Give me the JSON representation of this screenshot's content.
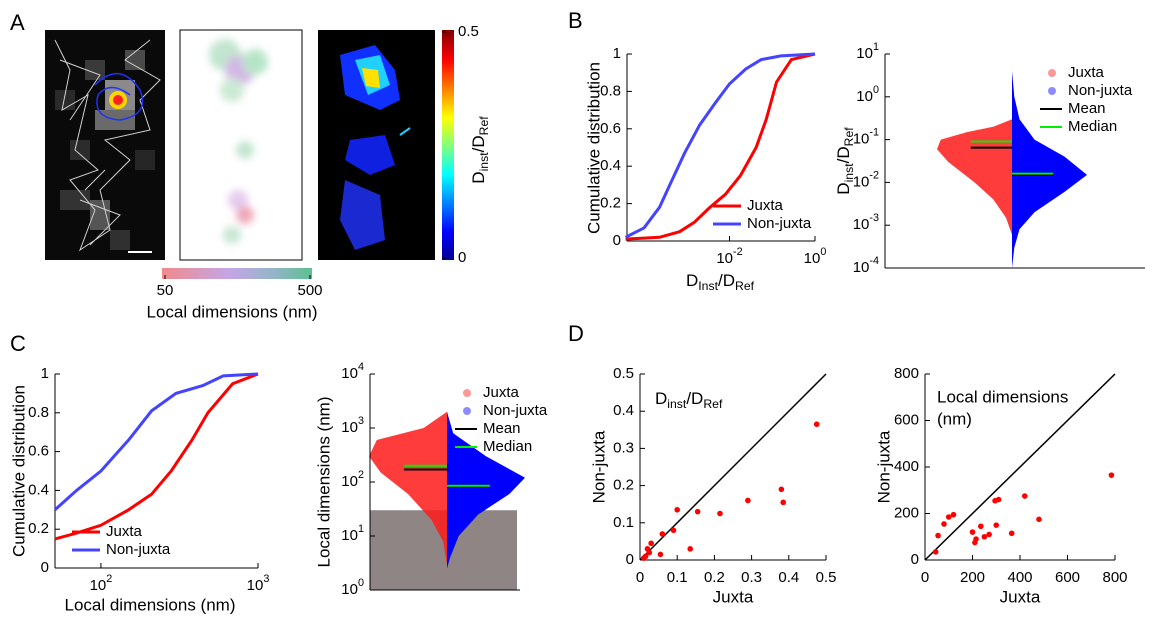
{
  "panel_labels": {
    "a": "A",
    "b": "B",
    "c": "C",
    "d": "D"
  },
  "panel_a": {
    "colorbar_jet": {
      "lim": [
        0,
        0.5
      ],
      "ticks": [
        0,
        0.5
      ],
      "label": [
        "D",
        "inst",
        "/D",
        "Ref"
      ]
    },
    "colorbar_local": {
      "lim": [
        50,
        500
      ],
      "ticks": [
        50,
        500
      ],
      "label": "Local dimensions (nm)"
    }
  },
  "chart_data": [
    {
      "type": "line",
      "xscale": "log",
      "xlim": [
        4e-05,
        1
      ],
      "xticks": [
        {
          "value": 0.01,
          "label": "10",
          "exponent": "-2"
        },
        {
          "value": 1,
          "label": "10",
          "exponent": "0"
        }
      ],
      "ylim": [
        0,
        1
      ],
      "yticks": [
        0,
        0.2,
        0.4,
        0.6,
        0.8,
        1
      ],
      "xlabel": [
        "D",
        "Inst",
        "/D",
        "Ref"
      ],
      "ylabel": "Cumulative distribution",
      "legend": "lower right",
      "series": [
        {
          "name": "Juxta",
          "color": "#ff0000",
          "x": [
            3.7e-05,
            0.00023,
            0.00068,
            0.0015,
            0.0035,
            0.008,
            0.018,
            0.042,
            0.072,
            0.126,
            0.28,
            1
          ],
          "values": [
            0.01,
            0.02,
            0.05,
            0.1,
            0.18,
            0.25,
            0.35,
            0.5,
            0.65,
            0.85,
            0.97,
            1
          ]
        },
        {
          "name": "Non-juxta",
          "color": "#4444ff",
          "x": [
            3.7e-05,
            0.0001,
            0.00023,
            0.00044,
            0.00089,
            0.002,
            0.0047,
            0.01,
            0.024,
            0.055,
            0.16,
            1
          ],
          "values": [
            0.02,
            0.07,
            0.18,
            0.32,
            0.47,
            0.62,
            0.74,
            0.84,
            0.92,
            0.97,
            0.99,
            1
          ]
        }
      ]
    },
    {
      "type": "violin",
      "yscale": "log",
      "ylim": [
        0.0001,
        10
      ],
      "yticks": [
        {
          "value": 0.0001,
          "label": "10",
          "exponent": "-4"
        },
        {
          "value": 0.001,
          "label": "10",
          "exponent": "-3"
        },
        {
          "value": 0.01,
          "label": "10",
          "exponent": "-2"
        },
        {
          "value": 0.1,
          "label": "10",
          "exponent": "-1"
        },
        {
          "value": 1,
          "label": "10",
          "exponent": "0"
        },
        {
          "value": 10,
          "label": "10",
          "exponent": "1"
        }
      ],
      "ylabel": [
        "D",
        "inst",
        "/D",
        "Ref"
      ],
      "legend": "upper right",
      "series": [
        {
          "name": "Juxta",
          "color": "#ff1a1a",
          "side": "left",
          "y": [
            0.3,
            0.2,
            0.15,
            0.1,
            0.06,
            0.03,
            0.01,
            0.004,
            0.0015,
            0.0006
          ],
          "width": [
            0,
            0.25,
            0.6,
            0.95,
            1,
            0.85,
            0.5,
            0.25,
            0.08,
            0
          ]
        },
        {
          "name": "Non-juxta",
          "color": "#0000ff",
          "side": "right",
          "y": [
            4,
            1,
            0.3,
            0.1,
            0.04,
            0.015,
            0.006,
            0.002,
            0.0008,
            0.0003,
            0.0001
          ],
          "width": [
            0,
            0.03,
            0.1,
            0.3,
            0.7,
            1,
            0.7,
            0.3,
            0.1,
            0.03,
            0
          ]
        }
      ],
      "stats": [
        {
          "name": "Mean",
          "color": "#000000",
          "values": [
            0.065,
            0.015
          ]
        },
        {
          "name": "Median",
          "color": "#00ee00",
          "values": [
            0.09,
            0.016
          ]
        }
      ]
    },
    {
      "type": "line",
      "xscale": "log",
      "xlim": [
        51,
        1000
      ],
      "xticks": [
        {
          "value": 100,
          "label": "10",
          "exponent": "2"
        },
        {
          "value": 1000,
          "label": "10",
          "exponent": "3"
        }
      ],
      "ylim": [
        0,
        1
      ],
      "yticks": [
        0,
        0.2,
        0.4,
        0.6,
        0.8,
        1
      ],
      "xlabel": "Local dimensions (nm)",
      "ylabel": "Cumulative distribution",
      "legend": "lower left",
      "series": [
        {
          "name": "Juxta",
          "color": "#ff0000",
          "x": [
            51,
            70,
            100,
            150,
            210,
            280,
            380,
            480,
            690,
            1000
          ],
          "values": [
            0.15,
            0.18,
            0.22,
            0.3,
            0.38,
            0.5,
            0.66,
            0.8,
            0.95,
            1
          ]
        },
        {
          "name": "Non-juxta",
          "color": "#4444ff",
          "x": [
            51,
            70,
            100,
            150,
            210,
            300,
            445,
            600,
            1000
          ],
          "values": [
            0.3,
            0.4,
            0.5,
            0.66,
            0.81,
            0.9,
            0.94,
            0.99,
            1
          ]
        }
      ]
    },
    {
      "type": "violin",
      "yscale": "log",
      "ylim": [
        1,
        10000
      ],
      "yticks": [
        {
          "value": 1,
          "label": "10",
          "exponent": "0"
        },
        {
          "value": 10,
          "label": "10",
          "exponent": "1"
        },
        {
          "value": 100,
          "label": "10",
          "exponent": "2"
        },
        {
          "value": 1000,
          "label": "10",
          "exponent": "3"
        },
        {
          "value": 10000,
          "label": "10",
          "exponent": "4"
        }
      ],
      "ylabel": "Local dimensions (nm)",
      "legend": "upper right",
      "shade_max": 30,
      "shade_color": "#8f8585",
      "series": [
        {
          "name": "Juxta",
          "color": "#ff1a1a",
          "side": "left",
          "y": [
            2000,
            1000,
            600,
            300,
            150,
            60,
            20,
            8,
            3
          ],
          "width": [
            0,
            0.3,
            0.9,
            1,
            0.85,
            0.5,
            0.2,
            0.05,
            0
          ]
        },
        {
          "name": "Non-juxta",
          "color": "#0000ff",
          "side": "right",
          "y": [
            2000,
            800,
            300,
            120,
            60,
            25,
            10,
            4,
            2.5
          ],
          "width": [
            0,
            0.08,
            0.5,
            1,
            0.8,
            0.4,
            0.15,
            0.04,
            0
          ]
        }
      ],
      "stats": [
        {
          "name": "Mean",
          "color": "#000000",
          "values": [
            170,
            85
          ]
        },
        {
          "name": "Median",
          "color": "#00ee00",
          "values": [
            200,
            85
          ]
        }
      ]
    },
    {
      "type": "scatter",
      "color": "#ff0000",
      "diagonal": true,
      "xlim": [
        0,
        0.5
      ],
      "xticks": [
        0,
        0.1,
        0.2,
        0.3,
        0.4,
        0.5
      ],
      "ylim": [
        0,
        0.5
      ],
      "yticks": [
        0,
        0.1,
        0.2,
        0.3,
        0.4,
        0.5
      ],
      "xlabel": "Juxta",
      "ylabel": "Non-juxta",
      "annotation_sub": [
        "D",
        "inst",
        "/D",
        "Ref"
      ],
      "x": [
        0.475,
        0.38,
        0.385,
        0.29,
        0.215,
        0.155,
        0.135,
        0.1,
        0.09,
        0.06,
        0.055,
        0.03,
        0.025,
        0.015,
        0.02,
        0.01
      ],
      "values": [
        0.365,
        0.19,
        0.155,
        0.16,
        0.125,
        0.13,
        0.03,
        0.135,
        0.08,
        0.07,
        0.015,
        0.045,
        0.02,
        0.01,
        0.03,
        0.005
      ]
    },
    {
      "type": "scatter",
      "color": "#ff0000",
      "diagonal": true,
      "xlim": [
        0,
        800
      ],
      "xticks": [
        0,
        200,
        400,
        600,
        800
      ],
      "ylim": [
        0,
        800
      ],
      "yticks": [
        0,
        200,
        400,
        600,
        800
      ],
      "xlabel": "Juxta",
      "ylabel": "Non-juxta",
      "annotation_lines": [
        "Local dimensions",
        "(nm)"
      ],
      "x": [
        785,
        480,
        420,
        365,
        310,
        295,
        300,
        250,
        235,
        210,
        215,
        200,
        120,
        100,
        80,
        55,
        45,
        270
      ],
      "values": [
        365,
        175,
        275,
        115,
        260,
        255,
        150,
        100,
        145,
        75,
        90,
        120,
        195,
        185,
        155,
        105,
        35,
        110
      ]
    }
  ]
}
